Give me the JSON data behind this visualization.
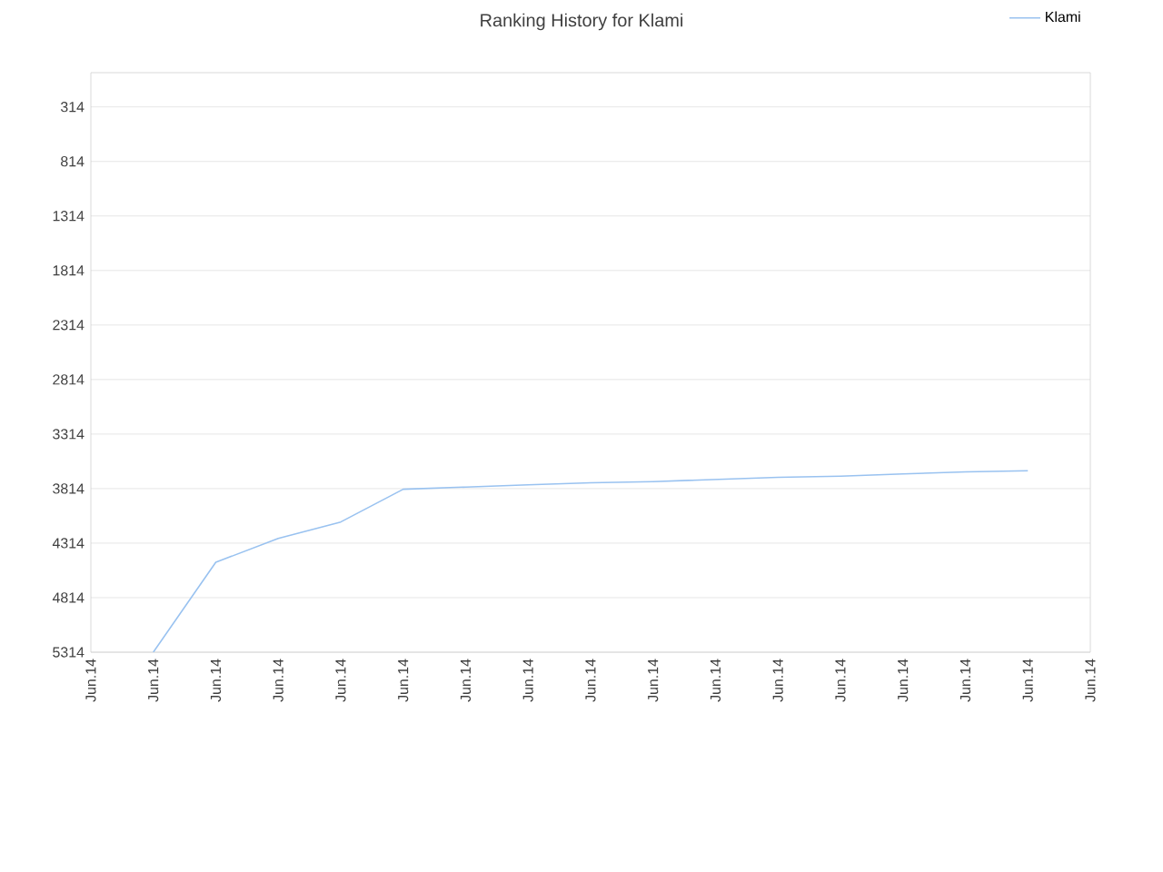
{
  "chart_data": {
    "type": "line",
    "title": "Ranking History for Klami",
    "categories": [
      "Jun.14",
      "Jun.14",
      "Jun.14",
      "Jun.14",
      "Jun.14",
      "Jun.14",
      "Jun.14",
      "Jun.14",
      "Jun.14",
      "Jun.14",
      "Jun.14",
      "Jun.14",
      "Jun.14",
      "Jun.14",
      "Jun.14",
      "Jun.14",
      "Jun.14"
    ],
    "series": [
      {
        "name": "Klami",
        "color": "#99c2f0",
        "values": [
          null,
          5314,
          4490,
          4270,
          4120,
          3820,
          3800,
          3780,
          3760,
          3750,
          3730,
          3710,
          3700,
          3680,
          3660,
          3650,
          null
        ]
      }
    ],
    "ylim": [
      5314,
      0
    ],
    "yticks": [
      314,
      814,
      1314,
      1814,
      2314,
      2814,
      3314,
      3814,
      4314,
      4814,
      5314
    ],
    "grid": "y",
    "legend": "top right",
    "marker": "none",
    "line_style": "solid"
  }
}
